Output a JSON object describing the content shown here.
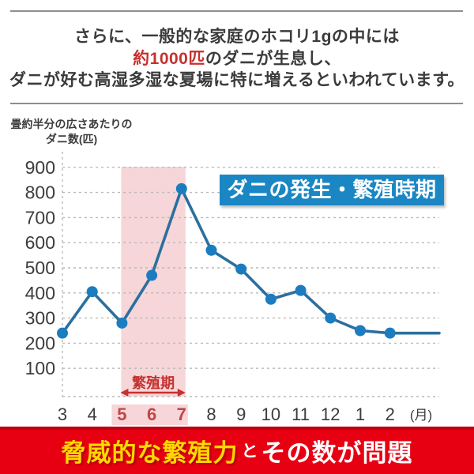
{
  "header": {
    "line1": "さらに、一般的な家庭のホコリ1gの中には",
    "line2_highlight": "約1000匹",
    "line2_rest": "のダニが生息し、",
    "line3": "ダニが好む高湿多湿な夏場に特に増えるといわれています。"
  },
  "chart": {
    "axis_title_line1": "畳約半分の広さあたりの",
    "axis_title_line2": "ダニ数(匹)",
    "annotation_label": "ダニの発生・繁殖時期"
  },
  "chart_data": {
    "type": "line",
    "title": "ダニの発生・繁殖時期",
    "ylabel": "畳約半分の広さあたりのダニ数(匹)",
    "xlabel": "(月)",
    "x_unit": "(月)",
    "categories": [
      "3",
      "4",
      "5",
      "6",
      "7",
      "8",
      "9",
      "10",
      "11",
      "12",
      "1",
      "2"
    ],
    "values": [
      240,
      405,
      280,
      470,
      815,
      570,
      495,
      375,
      410,
      300,
      250,
      240
    ],
    "trailing_value": 240,
    "ylim": [
      0,
      950
    ],
    "yticks": [
      100,
      200,
      300,
      400,
      500,
      600,
      700,
      800,
      900
    ],
    "grid": true,
    "legend": "none",
    "highlight_months": [
      "5",
      "6",
      "7"
    ],
    "highlight_label": "繁殖期"
  },
  "footer": {
    "highlight": "脅威的な繁殖力",
    "connector": "と",
    "rest": "その数が問題"
  },
  "colors": {
    "line": "#2b6f9e",
    "dot": "#1b7dc0",
    "grid": "#b9b9b9",
    "axis_text": "#3c3c3c",
    "month_red": "#c04648",
    "red_text": "#c5312e",
    "band_pink": "#f6d6d8",
    "banner_blue": "#1a86c3",
    "footer_red": "#e60012",
    "footer_red_dark": "#c10010",
    "footer_yellow": "#ffd800",
    "rule_gray": "#8e8e8e",
    "header_text": "#3b3b3b"
  }
}
